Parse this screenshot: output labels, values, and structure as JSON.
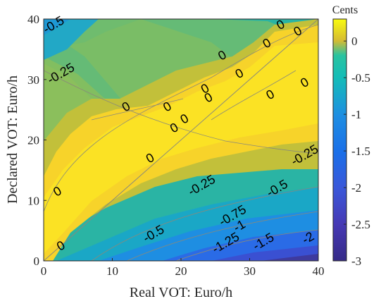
{
  "chart_data": {
    "type": "heatmap",
    "xlabel": "Real VOT: Euro/h",
    "ylabel": "Declared VOT: Euro/h",
    "xlim": [
      0,
      40
    ],
    "ylim": [
      0,
      40
    ],
    "x_ticks": [
      "0",
      "10",
      "20",
      "30",
      "40"
    ],
    "y_ticks": [
      "0",
      "10",
      "20",
      "30",
      "40"
    ],
    "colorbar": {
      "title": "Cents",
      "range": [
        -3,
        0.3
      ],
      "ticks": [
        "0",
        "-0.5",
        "-1",
        "-1.5",
        "-2",
        "-2.5",
        "-3"
      ],
      "colormap": "parula"
    },
    "contour_labels": [
      {
        "text": "-0.5",
        "x": 1,
        "y": 39.5
      },
      {
        "text": "-0.25",
        "x": 2.5,
        "y": 31
      },
      {
        "text": "0",
        "x": 12,
        "y": 25.5
      },
      {
        "text": "0",
        "x": 18,
        "y": 25.5
      },
      {
        "text": "0",
        "x": 20.5,
        "y": 23.5
      },
      {
        "text": "0",
        "x": 19,
        "y": 22
      },
      {
        "text": "0",
        "x": 23.5,
        "y": 28.5
      },
      {
        "text": "0",
        "x": 24,
        "y": 27
      },
      {
        "text": "0",
        "x": 26,
        "y": 34
      },
      {
        "text": "0",
        "x": 28.5,
        "y": 31
      },
      {
        "text": "0",
        "x": 32.5,
        "y": 36
      },
      {
        "text": "0",
        "x": 34.5,
        "y": 40
      },
      {
        "text": "0",
        "x": 37,
        "y": 38
      },
      {
        "text": "0",
        "x": 33,
        "y": 27.5
      },
      {
        "text": "0",
        "x": 38,
        "y": 29.5
      },
      {
        "text": "0",
        "x": 15.5,
        "y": 17
      },
      {
        "text": "0",
        "x": 2,
        "y": 11.5
      },
      {
        "text": "0",
        "x": 2.5,
        "y": 2.5
      },
      {
        "text": "-0.25",
        "x": 38,
        "y": 17.5
      },
      {
        "text": "-0.25",
        "x": 23,
        "y": 12.5
      },
      {
        "text": "-0.5",
        "x": 34,
        "y": 12
      },
      {
        "text": "-0.75",
        "x": 27.5,
        "y": 7.5
      },
      {
        "text": "-1",
        "x": 28.5,
        "y": 5.8
      },
      {
        "text": "-0.5",
        "x": 16,
        "y": 4.5
      },
      {
        "text": "-1.25",
        "x": 26.5,
        "y": 3
      },
      {
        "text": "-1.5",
        "x": 32,
        "y": 3.2
      },
      {
        "text": "-2",
        "x": 38.5,
        "y": 3.8
      }
    ]
  }
}
